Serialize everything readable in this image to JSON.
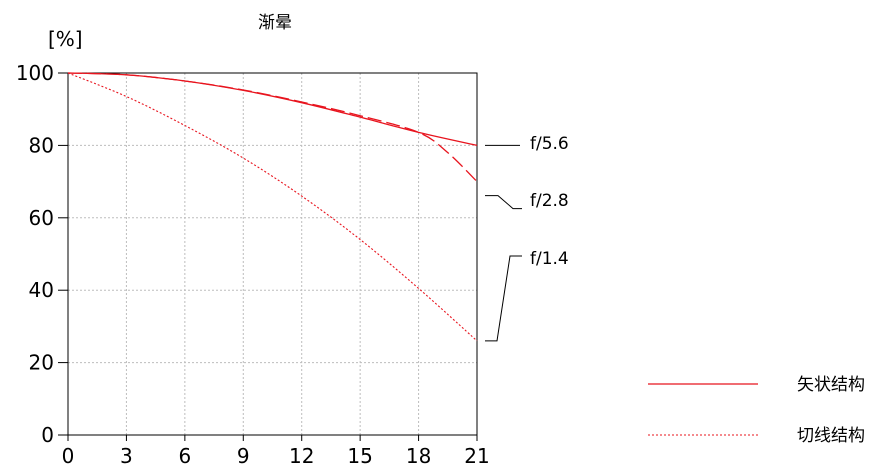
{
  "chart_data": {
    "type": "line",
    "title": "渐晕",
    "ylabel": "[%]",
    "xlabel": "",
    "xlim": [
      0,
      21
    ],
    "ylim": [
      0,
      100
    ],
    "xticks": [
      0,
      3,
      6,
      9,
      12,
      15,
      18,
      21
    ],
    "yticks": [
      0,
      20,
      40,
      60,
      80,
      100
    ],
    "grid": true,
    "series": [
      {
        "name": "f/5.6",
        "style": "solid",
        "color": "#e8141e",
        "x": [
          0,
          3,
          6,
          9,
          12,
          15,
          18,
          21
        ],
        "y": [
          100,
          99.5,
          97.8,
          95.2,
          91.8,
          87.8,
          83.6,
          80
        ]
      },
      {
        "name": "f/2.8",
        "style": "dashed",
        "color": "#e8141e",
        "x": [
          0,
          3,
          6,
          9,
          12,
          15,
          18,
          19.5,
          21
        ],
        "y": [
          100,
          99.5,
          97.8,
          95.3,
          92,
          88.2,
          83.6,
          78,
          70
        ]
      },
      {
        "name": "f/1.4",
        "style": "dotted",
        "color": "#e8141e",
        "x": [
          0,
          3,
          6,
          9,
          12,
          15,
          18,
          21
        ],
        "y": [
          100,
          93.5,
          85.5,
          76.5,
          66,
          54,
          40.5,
          26
        ]
      }
    ],
    "legend": {
      "placement": "bottom-right",
      "items": [
        {
          "label": "矢状结构",
          "style": "solid",
          "color": "#e8141e"
        },
        {
          "label": "切线结构",
          "style": "dotted",
          "color": "#e8141e"
        }
      ]
    }
  }
}
